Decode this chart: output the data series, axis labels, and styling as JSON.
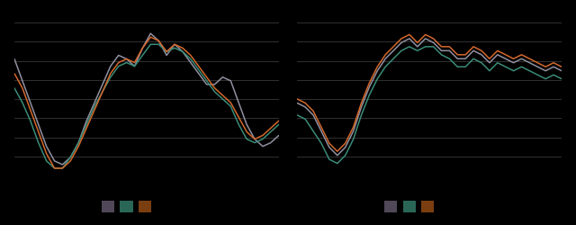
{
  "background_color": "#000000",
  "plot_bg_color": "#000000",
  "grid_color": "#444444",
  "line_colors": [
    "#9090a0",
    "#3a8c78",
    "#d4682a"
  ],
  "legend_colors": [
    "#504858",
    "#2a6655",
    "#7a3e10"
  ],
  "linewidth": 1.1,
  "left_series": {
    "gray": [
      10,
      4,
      -2,
      -8,
      -14,
      -18,
      -19,
      -17,
      -13,
      -7,
      -2,
      3,
      8,
      11,
      10,
      8,
      13,
      17,
      15,
      11,
      14,
      12,
      9,
      6,
      3,
      3,
      5,
      4,
      -2,
      -8,
      -12,
      -14,
      -13,
      -11
    ],
    "teal": [
      2,
      -2,
      -7,
      -13,
      -18,
      -20,
      -20,
      -17,
      -13,
      -8,
      -3,
      1,
      5,
      8,
      9,
      8,
      11,
      14,
      14,
      12,
      13,
      12,
      10,
      7,
      4,
      1,
      -1,
      -3,
      -8,
      -12,
      -13,
      -12,
      -10,
      -8
    ],
    "orange": [
      6,
      2,
      -4,
      -10,
      -16,
      -20,
      -20,
      -18,
      -14,
      -9,
      -4,
      1,
      6,
      9,
      10,
      9,
      13,
      16,
      15,
      12,
      14,
      13,
      11,
      8,
      5,
      2,
      0,
      -2,
      -6,
      -10,
      -12,
      -11,
      -9,
      -7
    ]
  },
  "right_series": {
    "gray": [
      -4,
      -5,
      -7,
      -11,
      -15,
      -17,
      -15,
      -11,
      -5,
      0,
      4,
      7,
      9,
      11,
      12,
      10,
      12,
      11,
      9,
      9,
      7,
      7,
      9,
      8,
      6,
      8,
      7,
      6,
      7,
      6,
      5,
      4,
      5,
      4
    ],
    "teal": [
      -7,
      -8,
      -11,
      -14,
      -18,
      -19,
      -17,
      -13,
      -7,
      -2,
      2,
      5,
      7,
      9,
      10,
      9,
      10,
      10,
      8,
      7,
      5,
      5,
      7,
      6,
      4,
      6,
      5,
      4,
      5,
      4,
      3,
      2,
      3,
      2
    ],
    "orange": [
      -3,
      -4,
      -6,
      -10,
      -14,
      -16,
      -14,
      -10,
      -4,
      1,
      5,
      8,
      10,
      12,
      13,
      11,
      13,
      12,
      10,
      10,
      8,
      8,
      10,
      9,
      7,
      9,
      8,
      7,
      8,
      7,
      6,
      5,
      6,
      5
    ]
  },
  "ylim_left": [
    -22,
    20
  ],
  "ylim_right": [
    -22,
    16
  ],
  "n_gridlines": 9
}
